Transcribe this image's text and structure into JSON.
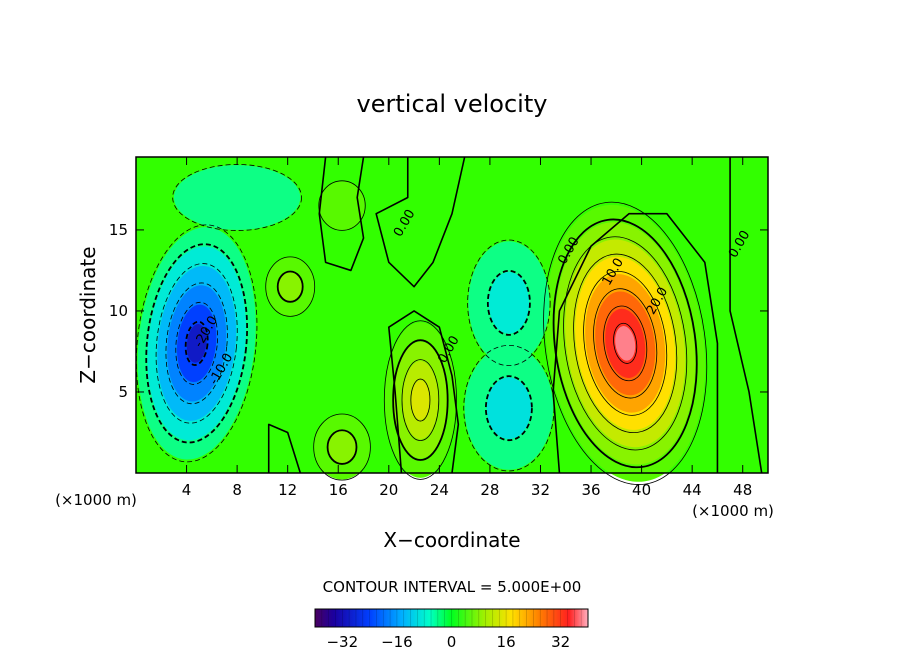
{
  "chart_data": {
    "type": "heatmap",
    "title": "vertical velocity",
    "xlabel": "X−coordinate",
    "ylabel": "Z−coordinate",
    "x_unit_left": "(×1000 m)",
    "x_unit_right": "(×1000 m)",
    "xlim": [
      0,
      50
    ],
    "ylim": [
      0,
      19.5
    ],
    "x_ticks": [
      4,
      8,
      12,
      16,
      20,
      24,
      28,
      32,
      36,
      40,
      44,
      48
    ],
    "y_ticks": [
      5,
      10,
      15
    ],
    "contour_interval_text": "CONTOUR INTERVAL = 5.000E+00",
    "colorbar": {
      "ticks": [
        -32,
        -16,
        0,
        16,
        32
      ],
      "range": [
        -40,
        40
      ]
    },
    "contour_labels": [
      {
        "text": "0.00",
        "x": 21.5,
        "y": 15.3
      },
      {
        "text": "0.00",
        "x": 34.5,
        "y": 13.6
      },
      {
        "text": "10.0",
        "x": 38.0,
        "y": 12.3
      },
      {
        "text": "20.0",
        "x": 41.5,
        "y": 10.5
      },
      {
        "text": "0.00",
        "x": 48.0,
        "y": 14.0
      },
      {
        "text": "0.00",
        "x": 25.0,
        "y": 7.5
      },
      {
        "text": "-20.0",
        "x": 5.8,
        "y": 8.6
      },
      {
        "text": "-10.0",
        "x": 7.0,
        "y": 6.3
      }
    ],
    "features": [
      {
        "kind": "updraft",
        "x": 38.7,
        "y": 7.2,
        "peak": 38
      },
      {
        "kind": "downdraft",
        "x": 5.3,
        "y": 7.8,
        "peak": -30
      },
      {
        "kind": "updraft",
        "x": 22.5,
        "y": 4.5,
        "peak": 14
      },
      {
        "kind": "updraft",
        "x": 16.3,
        "y": 1.5,
        "peak": 9
      },
      {
        "kind": "updraft",
        "x": 12.0,
        "y": 11.5,
        "peak": 8
      },
      {
        "kind": "downdraft",
        "x": 29.5,
        "y": 3.5,
        "peak": -10
      },
      {
        "kind": "downdraft",
        "x": 29.5,
        "y": 10.5,
        "peak": -8
      }
    ]
  }
}
